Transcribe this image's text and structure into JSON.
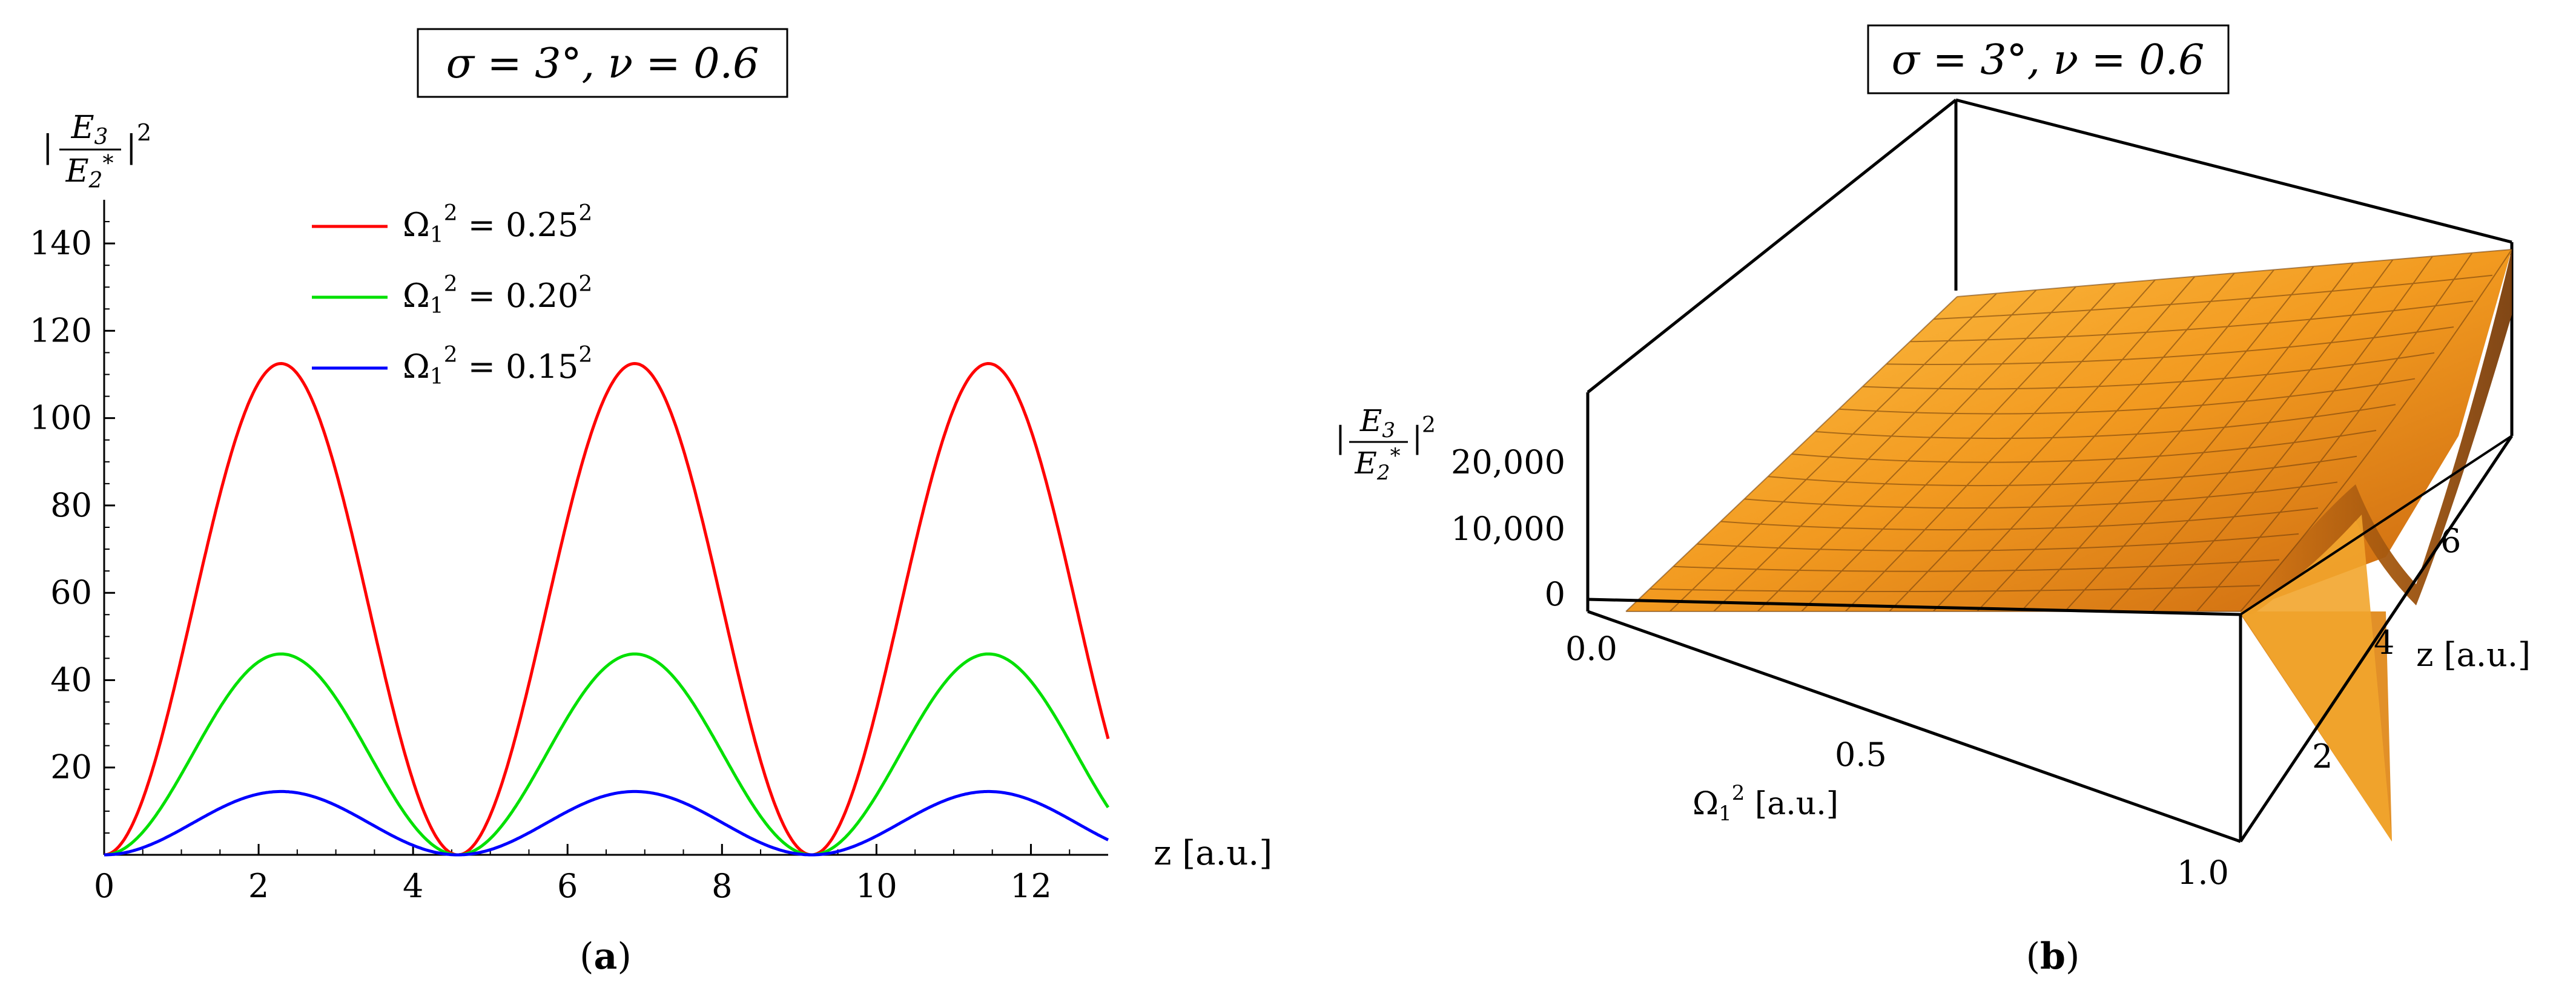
{
  "chart_data": [
    {
      "type": "line",
      "panel_label": "(a)",
      "title": "σ = 3°, ν = 0.6",
      "ylabel": {
        "num": "E3",
        "den": "E2*",
        "power": "2"
      },
      "xlabel": "z [a.u.]",
      "xlim": [
        0,
        13
      ],
      "ylim": [
        0,
        150
      ],
      "xticks": [
        0,
        2,
        4,
        6,
        8,
        10,
        12
      ],
      "yticks": [
        20,
        40,
        60,
        80,
        100,
        120,
        140
      ],
      "period": 4.58,
      "legend_position": "top-center",
      "series": [
        {
          "name": "Ω₁² = 0.25²",
          "name_base": "Ω",
          "name_sub": "1",
          "name_rest": " = 0.25",
          "name_exp": "2",
          "color": "#ff0000",
          "peak": 112.5,
          "peak_x": [
            2.3,
            6.88,
            11.46
          ],
          "end_value": 27
        },
        {
          "name": "Ω₁² = 0.20²",
          "name_base": "Ω",
          "name_sub": "1",
          "name_rest": " = 0.20",
          "name_exp": "2",
          "color": "#00e000",
          "peak": 46,
          "peak_x": [
            2.3,
            6.88,
            11.46
          ],
          "end_value": 11
        },
        {
          "name": "Ω₁² = 0.15²",
          "name_base": "Ω",
          "name_sub": "1",
          "name_rest": " = 0.15",
          "name_exp": "2",
          "color": "#0000ff",
          "peak": 14.5,
          "peak_x": [
            2.3,
            6.88,
            11.46
          ],
          "end_value": 3.5
        }
      ]
    },
    {
      "type": "surface",
      "panel_label": "(b)",
      "title": "σ = 3°, ν = 0.6",
      "zlabel": {
        "num": "E3",
        "den": "E2*",
        "power": "2"
      },
      "xlabel": "Ω₁² [a.u.]",
      "xlabel_parts": {
        "base": "Ω",
        "sub": "1",
        "exp": "2",
        "rest": " [a.u.]"
      },
      "ylabel": "z [a.u.]",
      "xlim": [
        0,
        1
      ],
      "ylim": [
        0,
        7.2
      ],
      "zlim": [
        0,
        25000
      ],
      "xticks": [
        "0.0",
        "0.5",
        "1.0"
      ],
      "yticks": [
        "2",
        "4",
        "6"
      ],
      "zticks": [
        "0",
        "10,000",
        "20,000"
      ],
      "color": "#f59a1e"
    }
  ]
}
